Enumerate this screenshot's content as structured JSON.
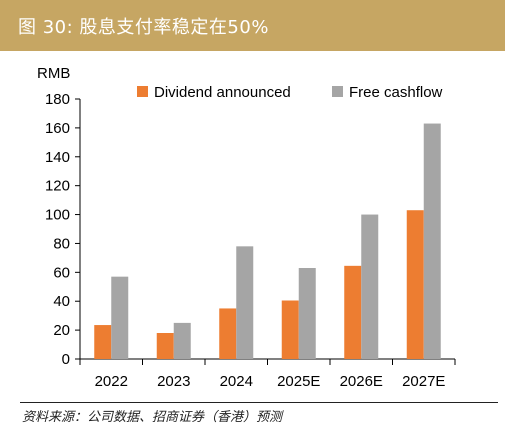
{
  "figure": {
    "title": "图 30: 股息支付率稳定在50%",
    "source": "资料来源：公司数据、招商证券（香港）预测"
  },
  "colors": {
    "title_bg": "#c6a663",
    "dividend": "#ed7d31",
    "cashflow": "#a5a5a5"
  },
  "chart_data": {
    "type": "bar",
    "title": "",
    "xlabel": "",
    "ylabel": "RMB",
    "categories": [
      "2022",
      "2023",
      "2024",
      "2025E",
      "2026E",
      "2027E"
    ],
    "series": [
      {
        "name": "Dividend announced",
        "values": [
          23.5,
          18,
          35,
          40.5,
          64.5,
          103
        ]
      },
      {
        "name": "Free cashflow",
        "values": [
          57,
          25,
          78,
          63,
          100,
          163
        ]
      }
    ],
    "ylim": [
      0,
      180
    ],
    "yticks": [
      0,
      20,
      40,
      60,
      80,
      100,
      120,
      140,
      160,
      180
    ],
    "legend": "top-right",
    "grid": false
  }
}
